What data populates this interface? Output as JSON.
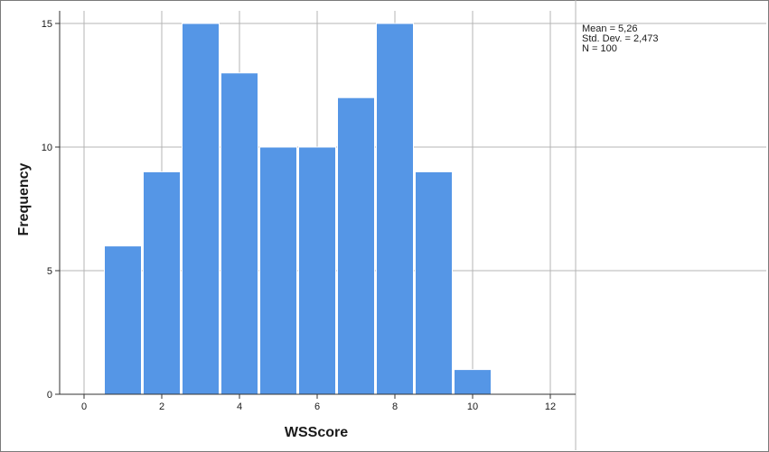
{
  "chart_data": {
    "type": "bar",
    "subtype": "histogram",
    "xlabel": "WSScore",
    "ylabel": "Frequency",
    "xlim": [
      -0.5,
      12.5
    ],
    "ylim": [
      0,
      15
    ],
    "xticks": [
      0,
      2,
      4,
      6,
      8,
      10,
      12
    ],
    "yticks": [
      0,
      5,
      10,
      15
    ],
    "grid": true,
    "bar_color": "#5596e6",
    "bins": [
      {
        "x": 1,
        "value": 6
      },
      {
        "x": 2,
        "value": 9
      },
      {
        "x": 3,
        "value": 15
      },
      {
        "x": 4,
        "value": 13
      },
      {
        "x": 5,
        "value": 10
      },
      {
        "x": 6,
        "value": 10
      },
      {
        "x": 7,
        "value": 12
      },
      {
        "x": 8,
        "value": 15
      },
      {
        "x": 9,
        "value": 9
      },
      {
        "x": 10,
        "value": 1
      }
    ],
    "stats": {
      "mean": "Mean = 5,26",
      "std": "Std. Dev. = 2,473",
      "n": "N = 100"
    }
  }
}
